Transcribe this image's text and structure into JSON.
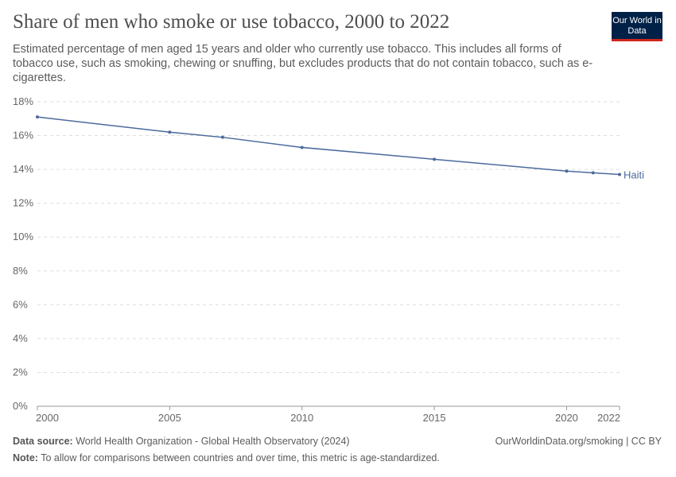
{
  "header": {
    "title": "Share of men who smoke or use tobacco, 2000 to 2022",
    "subtitle": "Estimated percentage of men aged 15 years and older who currently use tobacco. This includes all forms of tobacco use, such as smoking, chewing or snuffing, but excludes products that do not contain tobacco, such as e-cigarettes.",
    "logo": "Our World in Data"
  },
  "chart_data": {
    "type": "line",
    "title": "Share of men who smoke or use tobacco, 2000 to 2022",
    "x_ticks": [
      2000,
      2005,
      2010,
      2015,
      2020,
      2022
    ],
    "y_ticks": [
      "0%",
      "2%",
      "4%",
      "6%",
      "8%",
      "10%",
      "12%",
      "14%",
      "16%",
      "18%"
    ],
    "xlim": [
      2000,
      2022
    ],
    "ylim": [
      0,
      18
    ],
    "grid": "horizontal dashed",
    "series": [
      {
        "name": "Haiti",
        "color": "#4c6a9c",
        "x": [
          2000,
          2005,
          2007,
          2010,
          2015,
          2020,
          2021,
          2022
        ],
        "y": [
          17.1,
          16.2,
          15.9,
          15.3,
          14.6,
          13.9,
          13.8,
          13.7
        ]
      }
    ]
  },
  "footer": {
    "source_label": "Data source:",
    "source": "World Health Organization - Global Health Observatory (2024)",
    "url": "OurWorldinData.org/smoking | CC BY",
    "note_label": "Note:",
    "note": "To allow for comparisons between countries and over time, this metric is age-standardized."
  }
}
